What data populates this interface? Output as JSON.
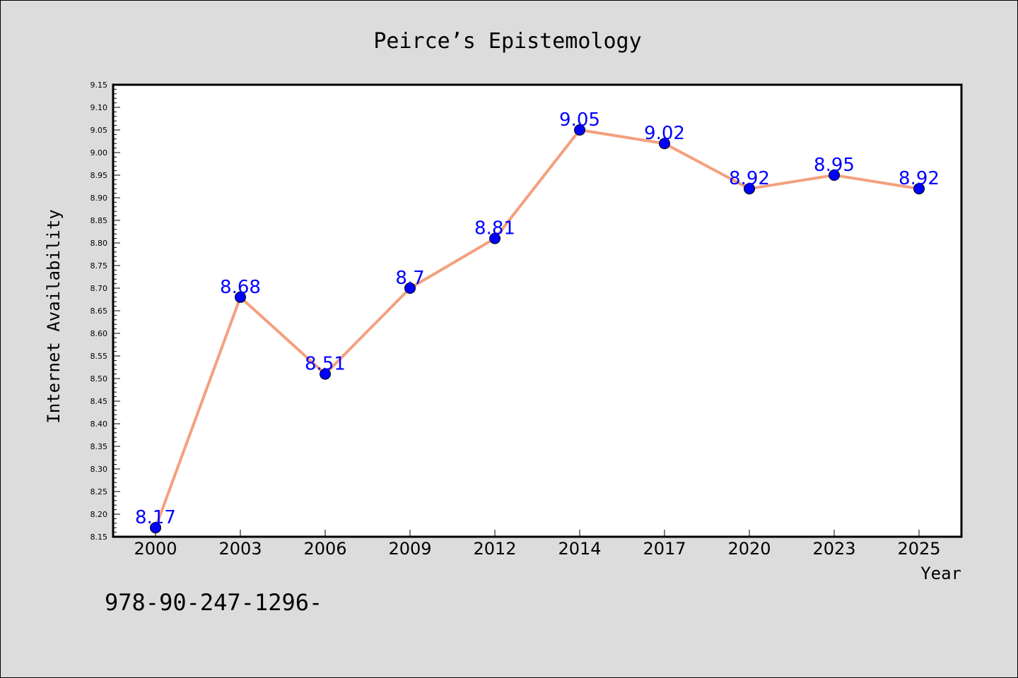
{
  "chart_data": {
    "type": "line",
    "title": "Peirce’s Epistemology",
    "xlabel": "Year",
    "ylabel": "Internet Availability",
    "categories": [
      "2000",
      "2003",
      "2006",
      "2009",
      "2012",
      "2014",
      "2017",
      "2020",
      "2023",
      "2025"
    ],
    "values": [
      8.17,
      8.68,
      8.51,
      8.7,
      8.81,
      9.05,
      9.02,
      8.92,
      8.95,
      8.92
    ],
    "data_labels": [
      "8.17",
      "8.68",
      "8.51",
      "8.7",
      "8.81",
      "9.05",
      "9.02",
      "8.92",
      "8.95",
      "8.92"
    ],
    "ylim": [
      8.15,
      9.15
    ],
    "yticks": [
      "8.15",
      "8.20",
      "8.25",
      "8.30",
      "8.35",
      "8.40",
      "8.45",
      "8.50",
      "8.55",
      "8.60",
      "8.65",
      "8.70",
      "8.75",
      "8.80",
      "8.85",
      "8.90",
      "8.95",
      "9.00",
      "9.05",
      "9.10",
      "9.15"
    ],
    "grid": false,
    "line_color": "#f4a07e",
    "marker_color": "#0000ff",
    "label_color": "#0000ff"
  },
  "footnote": "978-90-247-1296-"
}
